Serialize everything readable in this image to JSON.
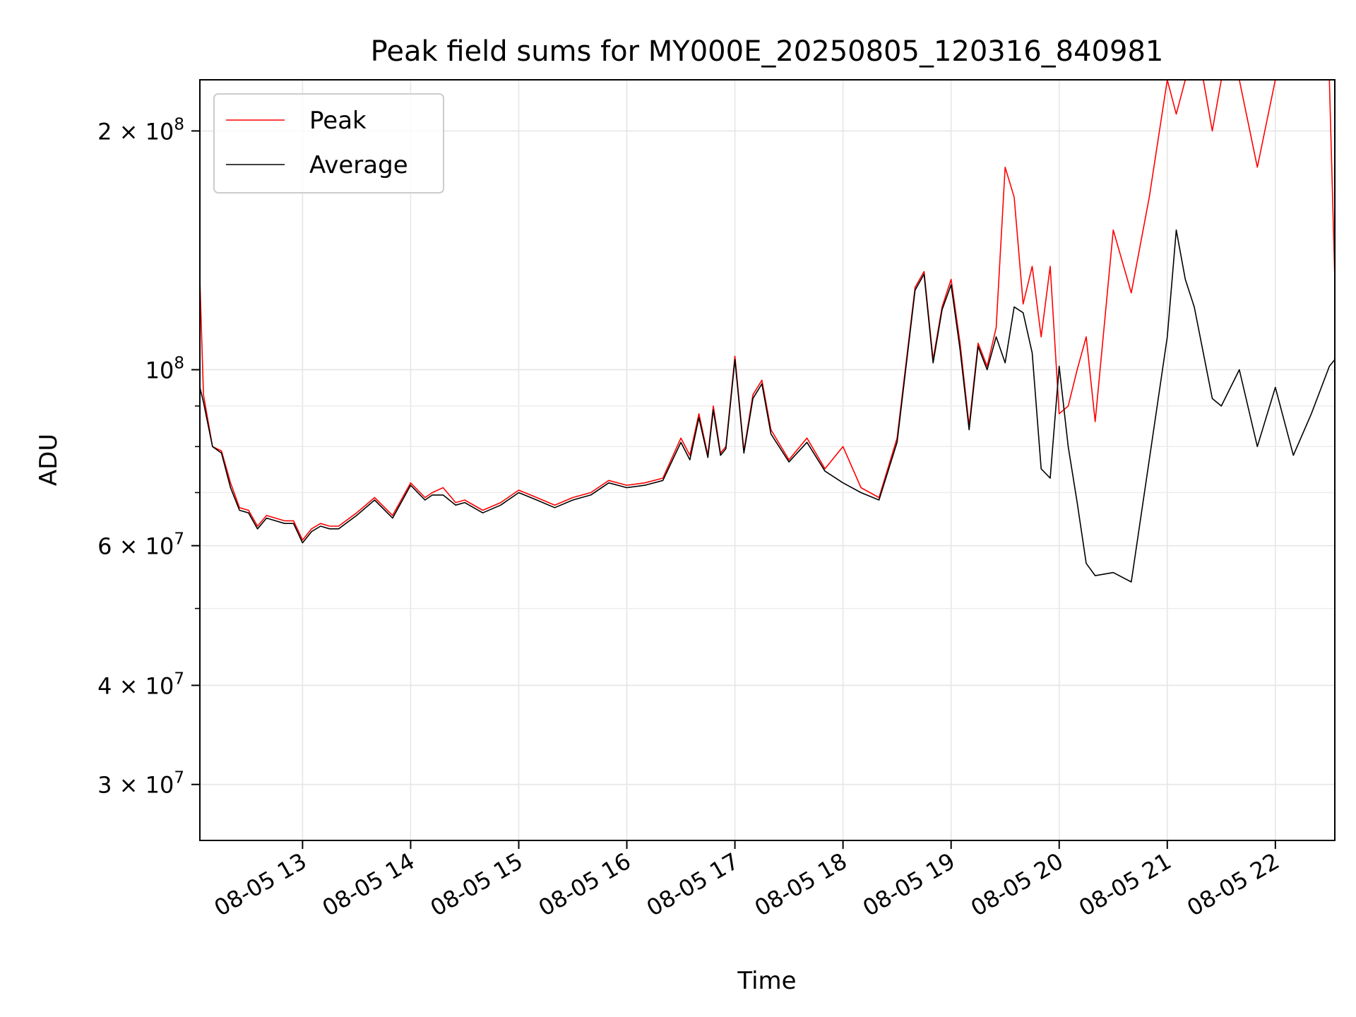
{
  "chart_data": {
    "type": "line",
    "title": "Peak field sums for MY000E_20250805_120316_840981",
    "xlabel": "Time",
    "ylabel": "ADU",
    "x_axis": {
      "type": "time",
      "range": [
        "2025-08-05T12:03",
        "2025-08-05T22:33"
      ],
      "ticks": [
        {
          "value": "2025-08-05T13:00",
          "label": "08-05 13"
        },
        {
          "value": "2025-08-05T14:00",
          "label": "08-05 14"
        },
        {
          "value": "2025-08-05T15:00",
          "label": "08-05 15"
        },
        {
          "value": "2025-08-05T16:00",
          "label": "08-05 16"
        },
        {
          "value": "2025-08-05T17:00",
          "label": "08-05 17"
        },
        {
          "value": "2025-08-05T18:00",
          "label": "08-05 18"
        },
        {
          "value": "2025-08-05T19:00",
          "label": "08-05 19"
        },
        {
          "value": "2025-08-05T20:00",
          "label": "08-05 20"
        },
        {
          "value": "2025-08-05T21:00",
          "label": "08-05 21"
        },
        {
          "value": "2025-08-05T22:00",
          "label": "08-05 22"
        }
      ]
    },
    "y_axis": {
      "scale": "log",
      "range": [
        25500000,
        232000000
      ],
      "major_ticks": [
        {
          "value": 30000000,
          "mantissa": "3",
          "exponent": "7"
        },
        {
          "value": 40000000,
          "mantissa": "4",
          "exponent": "7"
        },
        {
          "value": 60000000,
          "mantissa": "6",
          "exponent": "7"
        },
        {
          "value": 100000000,
          "mantissa": "",
          "exponent": "8"
        },
        {
          "value": 200000000,
          "mantissa": "2",
          "exponent": "8"
        }
      ],
      "minor_ticks": [
        50000000,
        70000000,
        80000000,
        90000000
      ]
    },
    "grid": true,
    "legend": {
      "position": "top-left"
    },
    "series": [
      {
        "name": "Peak",
        "color": "#ff0000",
        "x": [
          "12:03",
          "12:05",
          "12:10",
          "12:15",
          "12:20",
          "12:25",
          "12:30",
          "12:35",
          "12:40",
          "12:45",
          "12:50",
          "12:55",
          "13:00",
          "13:05",
          "13:10",
          "13:15",
          "13:20",
          "13:30",
          "13:40",
          "13:50",
          "14:00",
          "14:08",
          "14:12",
          "14:18",
          "14:25",
          "14:30",
          "14:40",
          "14:50",
          "15:00",
          "15:10",
          "15:20",
          "15:30",
          "15:40",
          "15:50",
          "16:00",
          "16:10",
          "16:20",
          "16:30",
          "16:35",
          "16:40",
          "16:45",
          "16:48",
          "16:52",
          "16:55",
          "17:00",
          "17:05",
          "17:10",
          "17:15",
          "17:20",
          "17:30",
          "17:40",
          "17:50",
          "18:00",
          "18:10",
          "18:20",
          "18:30",
          "18:40",
          "18:45",
          "18:50",
          "18:55",
          "19:00",
          "19:05",
          "19:10",
          "19:15",
          "19:20",
          "19:25",
          "19:30",
          "19:35",
          "19:40",
          "19:45",
          "19:50",
          "19:55",
          "20:00",
          "20:05",
          "20:10",
          "20:15",
          "20:20",
          "20:30",
          "20:40",
          "20:50",
          "21:00",
          "21:05",
          "21:10",
          "21:15",
          "21:20",
          "21:25",
          "21:30",
          "21:40",
          "21:50",
          "22:00",
          "22:10",
          "22:20",
          "22:30",
          "22:33"
        ],
        "values": [
          130000000,
          93000000,
          80000000,
          79000000,
          72000000,
          67000000,
          66500000,
          63500000,
          65500000,
          65000000,
          64500000,
          64500000,
          61000000,
          63000000,
          64000000,
          63500000,
          63500000,
          66000000,
          69000000,
          65500000,
          72000000,
          69000000,
          70000000,
          71000000,
          68000000,
          68500000,
          66500000,
          68000000,
          70500000,
          69000000,
          67500000,
          69000000,
          70000000,
          72500000,
          71500000,
          72000000,
          73000000,
          82000000,
          78000000,
          88000000,
          78000000,
          90000000,
          78500000,
          80000000,
          104000000,
          79000000,
          93000000,
          97000000,
          84000000,
          77000000,
          82000000,
          75000000,
          80000000,
          71000000,
          69000000,
          82000000,
          127000000,
          133000000,
          103000000,
          120000000,
          130000000,
          108000000,
          85000000,
          108000000,
          101000000,
          113000000,
          180000000,
          165000000,
          121000000,
          135000000,
          110000000,
          135000000,
          88000000,
          90000000,
          100000000,
          110000000,
          86000000,
          150000000,
          125000000,
          165000000,
          232000000,
          210000000,
          232000000,
          232000000,
          232000000,
          200000000,
          232000000,
          232000000,
          180000000,
          232000000,
          232000000,
          232000000,
          232000000,
          130000000
        ]
      },
      {
        "name": "Average",
        "color": "#000000",
        "x": [
          "12:03",
          "12:05",
          "12:10",
          "12:15",
          "12:20",
          "12:25",
          "12:30",
          "12:35",
          "12:40",
          "12:45",
          "12:50",
          "12:55",
          "13:00",
          "13:05",
          "13:10",
          "13:15",
          "13:20",
          "13:30",
          "13:40",
          "13:50",
          "14:00",
          "14:08",
          "14:12",
          "14:18",
          "14:25",
          "14:30",
          "14:40",
          "14:50",
          "15:00",
          "15:10",
          "15:20",
          "15:30",
          "15:40",
          "15:50",
          "16:00",
          "16:10",
          "16:20",
          "16:30",
          "16:35",
          "16:40",
          "16:45",
          "16:48",
          "16:52",
          "16:55",
          "17:00",
          "17:05",
          "17:10",
          "17:15",
          "17:20",
          "17:30",
          "17:40",
          "17:50",
          "18:00",
          "18:10",
          "18:20",
          "18:30",
          "18:40",
          "18:45",
          "18:50",
          "18:55",
          "19:00",
          "19:05",
          "19:10",
          "19:15",
          "19:20",
          "19:25",
          "19:30",
          "19:35",
          "19:40",
          "19:45",
          "19:50",
          "19:55",
          "20:00",
          "20:05",
          "20:10",
          "20:15",
          "20:20",
          "20:30",
          "20:40",
          "20:50",
          "21:00",
          "21:05",
          "21:10",
          "21:15",
          "21:20",
          "21:25",
          "21:30",
          "21:40",
          "21:50",
          "22:00",
          "22:10",
          "22:20",
          "22:30",
          "22:33"
        ],
        "values": [
          95000000,
          91000000,
          80000000,
          78500000,
          71000000,
          66500000,
          66000000,
          63000000,
          65000000,
          64500000,
          64000000,
          64000000,
          60500000,
          62500000,
          63500000,
          63000000,
          63000000,
          65500000,
          68500000,
          65000000,
          71500000,
          68500000,
          69500000,
          69500000,
          67500000,
          68000000,
          66000000,
          67500000,
          70000000,
          68500000,
          67000000,
          68500000,
          69500000,
          72000000,
          71000000,
          71500000,
          72500000,
          81000000,
          77000000,
          87000000,
          77500000,
          89000000,
          78000000,
          79500000,
          103000000,
          78500000,
          92000000,
          96000000,
          83000000,
          76500000,
          81000000,
          74500000,
          72000000,
          70000000,
          68500000,
          81000000,
          126000000,
          132000000,
          102000000,
          119000000,
          128000000,
          106000000,
          84000000,
          107000000,
          100000000,
          110000000,
          102000000,
          120000000,
          118000000,
          105000000,
          75000000,
          73000000,
          101000000,
          80000000,
          68000000,
          57000000,
          55000000,
          55500000,
          54000000,
          77000000,
          110000000,
          150000000,
          130000000,
          120000000,
          105000000,
          92000000,
          90000000,
          100000000,
          80000000,
          95000000,
          78000000,
          88000000,
          101000000,
          103000000
        ]
      }
    ]
  }
}
